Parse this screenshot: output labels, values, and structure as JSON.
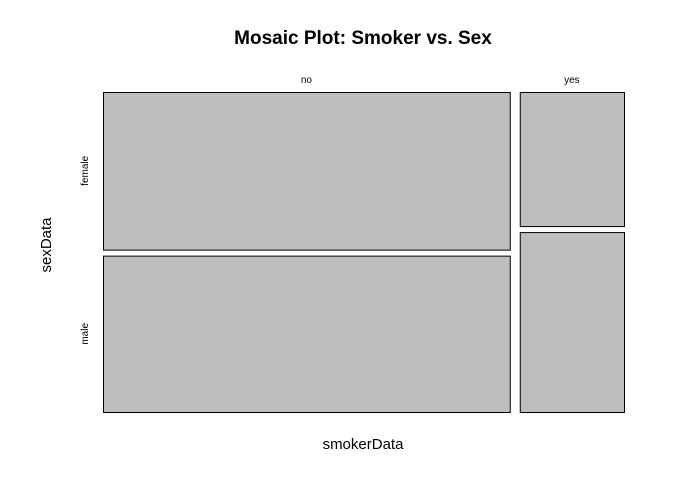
{
  "chart_data": {
    "type": "mosaic",
    "title": "Mosaic Plot: Smoker vs. Sex",
    "xlabel": "smokerData",
    "ylabel": "sexData",
    "x_categories": [
      "no",
      "yes"
    ],
    "y_categories": [
      "female",
      "male"
    ],
    "x_proportions": [
      0.796,
      0.204
    ],
    "conditional_proportions": {
      "no": {
        "female": 0.502,
        "male": 0.498
      },
      "yes": {
        "female": 0.427,
        "male": 0.573
      }
    },
    "tile_color": "#bebebe",
    "border_color": "#000000"
  }
}
